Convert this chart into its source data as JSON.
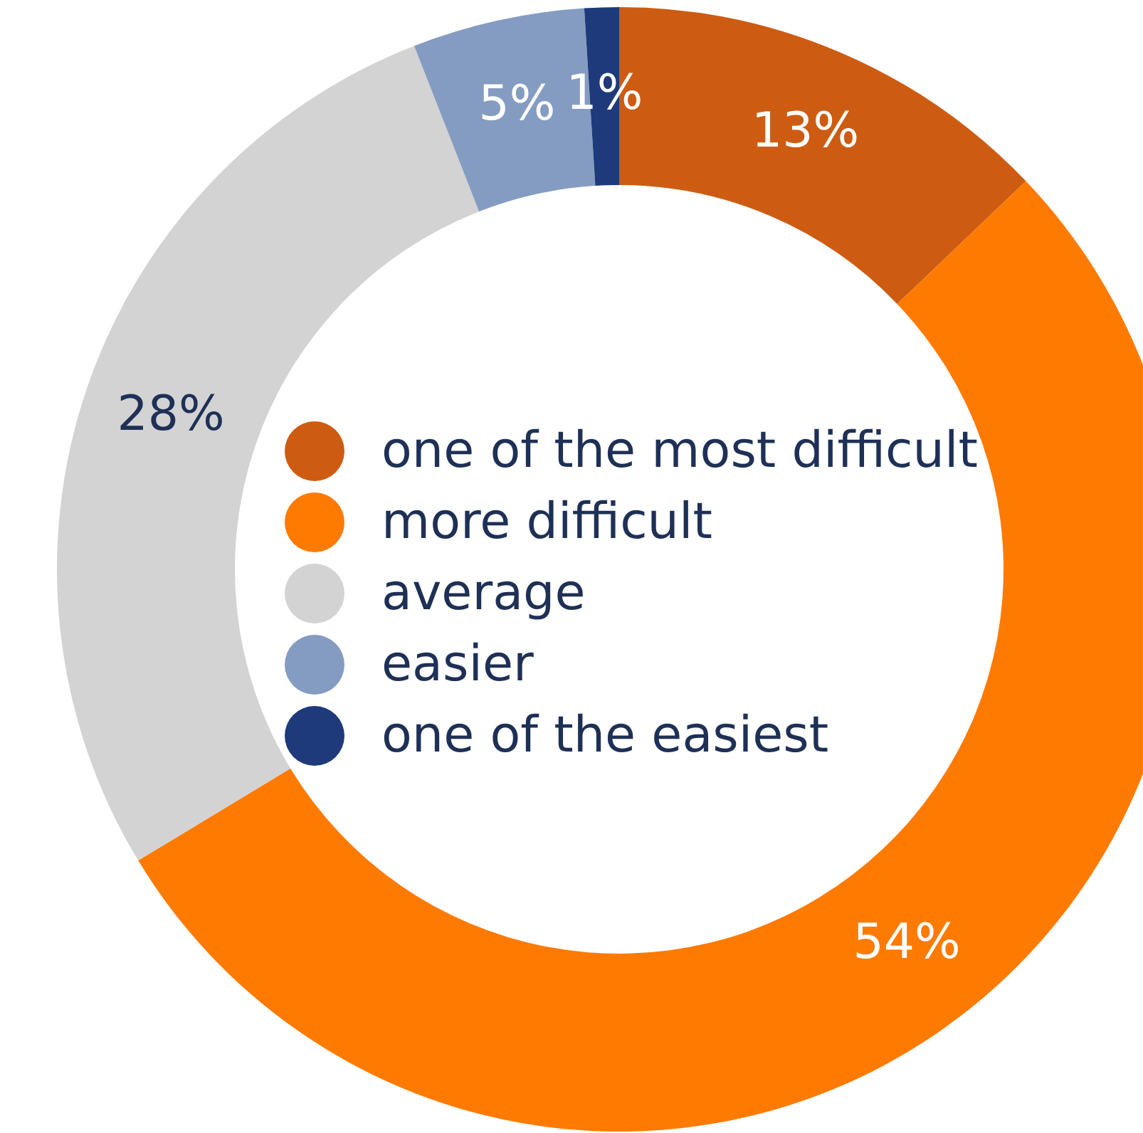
{
  "chart_data": {
    "type": "donut",
    "categories": [
      "one of the most difficult",
      "more difficult",
      "average",
      "easier",
      "one of the easiest"
    ],
    "values": [
      13,
      54,
      28,
      5,
      1
    ],
    "colors": [
      "#cd5c12",
      "#ff7a00",
      "#d3d3d3",
      "#859cc2",
      "#1f3a7a"
    ],
    "value_labels": [
      "13%",
      "54%",
      "28%",
      "5%",
      "1%"
    ],
    "legend": "center"
  }
}
